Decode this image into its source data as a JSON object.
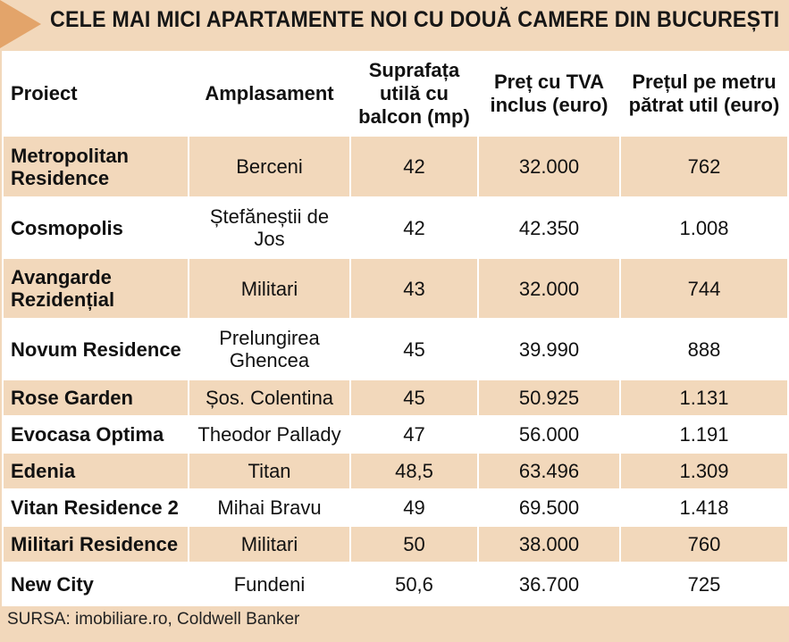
{
  "title": "CELE MAI MICI APARTAMENTE NOI CU DOUĂ CAMERE DIN BUCUREȘTI",
  "columns": [
    "Proiect",
    "Amplasament",
    "Suprafața utilă cu balcon (mp)",
    "Preț cu TVA inclus (euro)",
    "Prețul pe metru pătrat util (euro)"
  ],
  "rows": [
    {
      "proiect": "Metropolitan Residence",
      "amplasament": "Berceni",
      "suprafata": "42",
      "pret": "32.000",
      "pret_mp": "762"
    },
    {
      "proiect": "Cosmopolis",
      "amplasament": "Ștefăneștii de Jos",
      "suprafata": "42",
      "pret": "42.350",
      "pret_mp": "1.008"
    },
    {
      "proiect": "Avangarde Rezidențial",
      "amplasament": "Militari",
      "suprafata": "43",
      "pret": "32.000",
      "pret_mp": "744"
    },
    {
      "proiect": "Novum Residence",
      "amplasament": "Prelungirea Ghencea",
      "suprafata": "45",
      "pret": "39.990",
      "pret_mp": "888"
    },
    {
      "proiect": "Rose Garden",
      "amplasament": "Șos. Colentina",
      "suprafata": "45",
      "pret": "50.925",
      "pret_mp": "1.131"
    },
    {
      "proiect": "Evocasa Optima",
      "amplasament": "Theodor Pallady",
      "suprafata": "47",
      "pret": "56.000",
      "pret_mp": "1.191"
    },
    {
      "proiect": "Edenia",
      "amplasament": "Titan",
      "suprafata": "48,5",
      "pret": "63.496",
      "pret_mp": "1.309"
    },
    {
      "proiect": "Vitan Residence 2",
      "amplasament": "Mihai Bravu",
      "suprafata": "49",
      "pret": "69.500",
      "pret_mp": "1.418"
    },
    {
      "proiect": "Militari Residence",
      "amplasament": "Militari",
      "suprafata": "50",
      "pret": "38.000",
      "pret_mp": "760"
    },
    {
      "proiect": "New City",
      "amplasament": "Fundeni",
      "suprafata": "50,6",
      "pret": "36.700",
      "pret_mp": "725"
    }
  ],
  "source": "SURSA: imobiliare.ro, Coldwell Banker",
  "colors": {
    "accent": "#e3a46a",
    "band": "#f2d8bb",
    "background": "#ffffff"
  }
}
